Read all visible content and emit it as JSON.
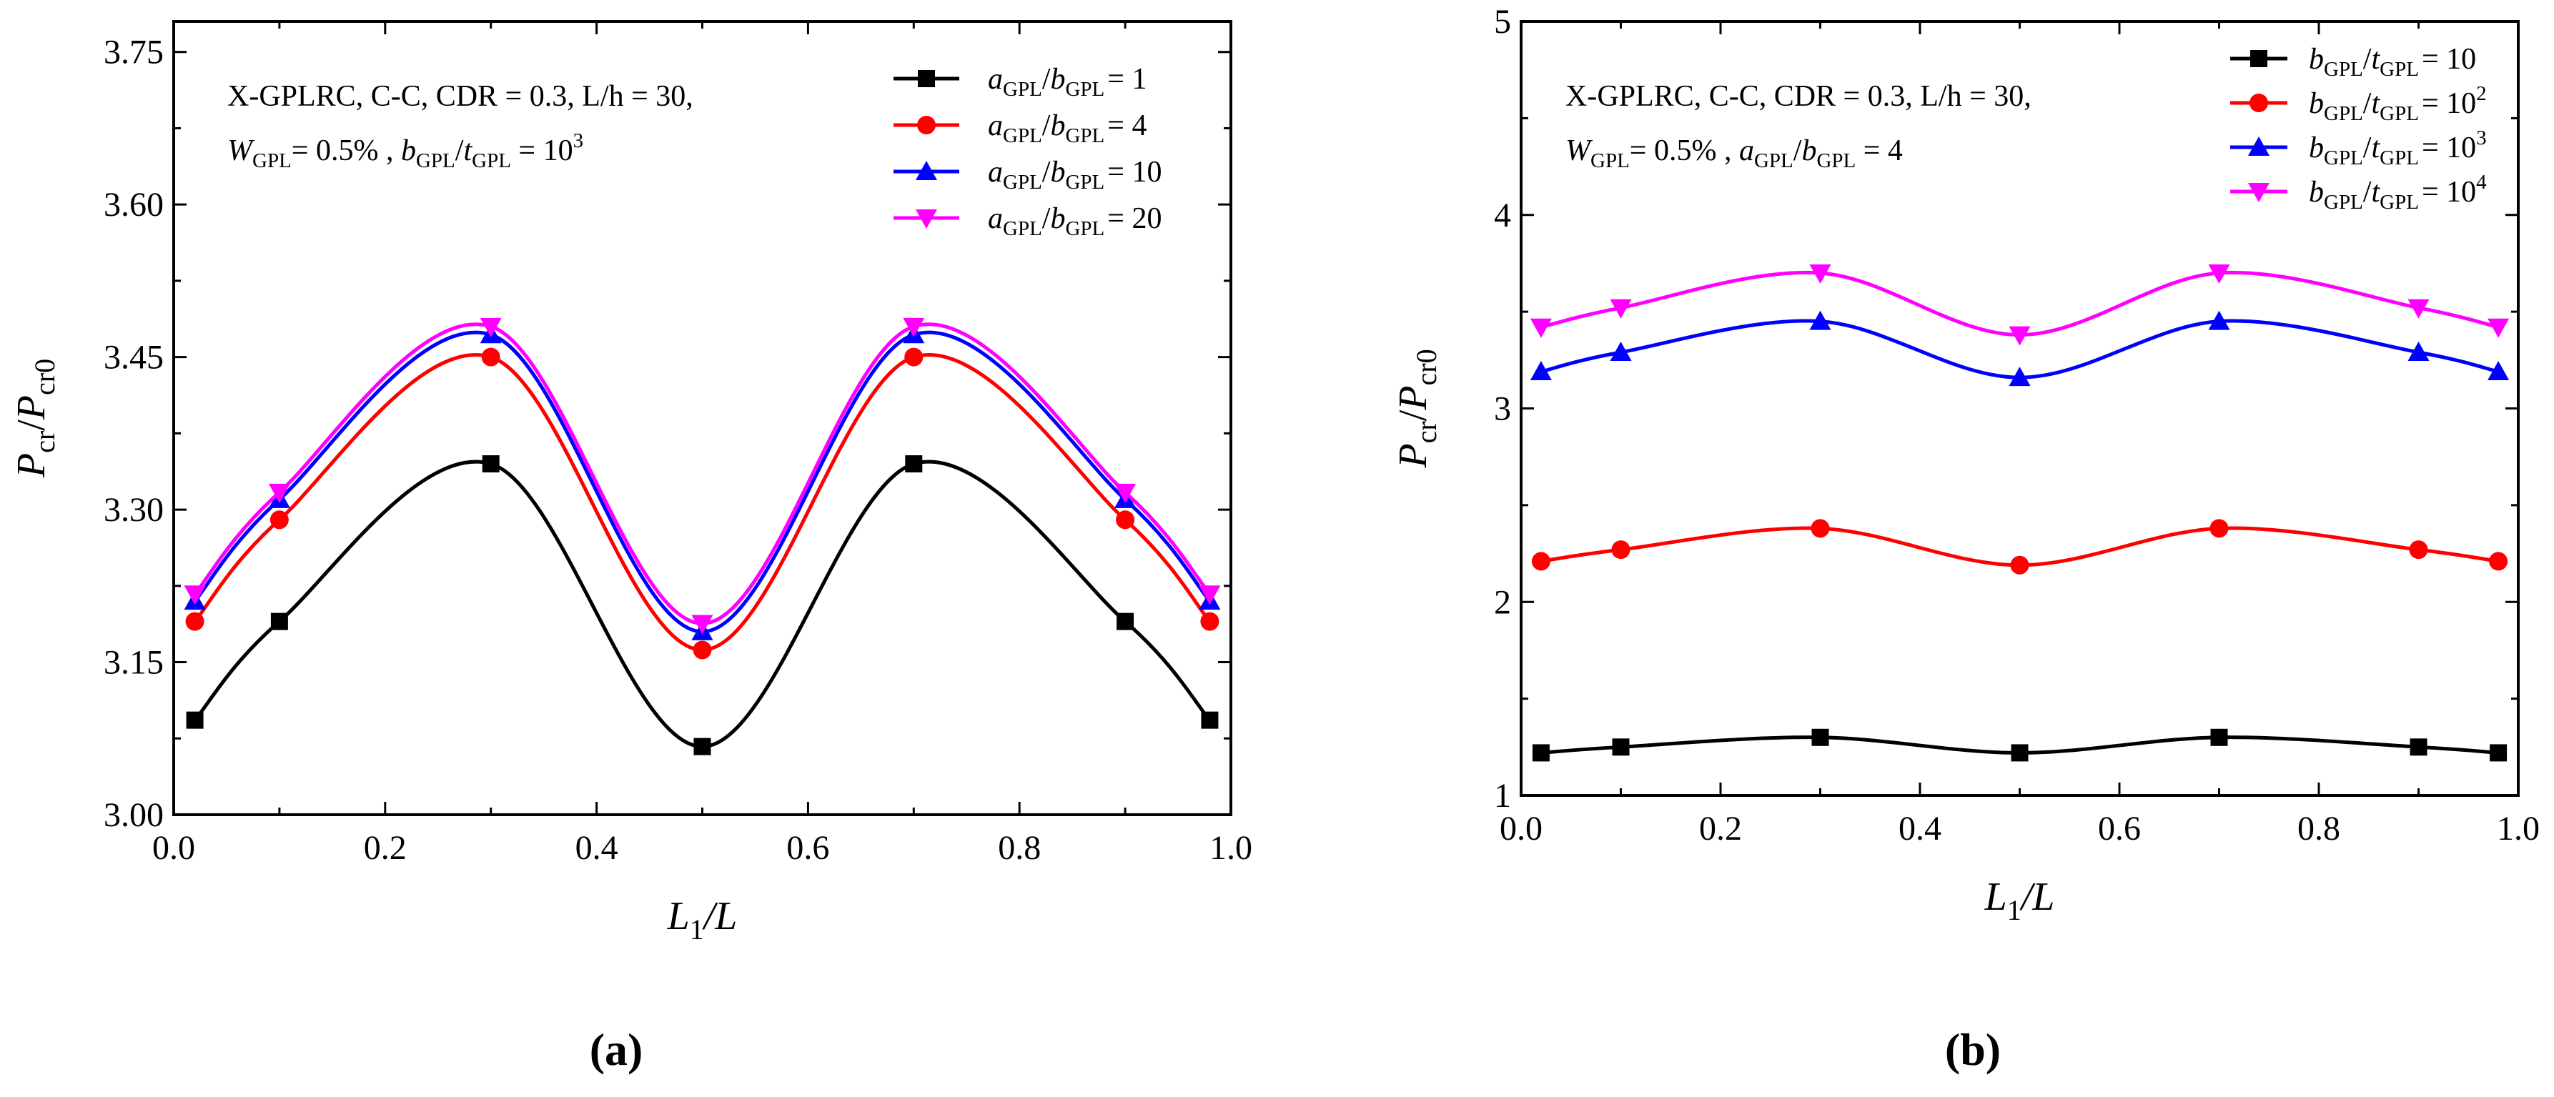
{
  "chart_data": [
    {
      "type": "line",
      "panel_label": "(a)",
      "title": "",
      "xlabel": {
        "main": "L",
        "sub": "1",
        "rest": "/L"
      },
      "ylabel": {
        "p1": "P",
        "s1": "cr",
        "slash": "/",
        "p2": "P",
        "s2": "cr0"
      },
      "xlim": [
        0.0,
        1.0
      ],
      "ylim": [
        3.0,
        3.78
      ],
      "xticks": [
        "0.0",
        "0.2",
        "0.4",
        "0.6",
        "0.8",
        "1.0"
      ],
      "yticks": [
        "3.00",
        "3.15",
        "3.30",
        "3.45",
        "3.60",
        "3.75"
      ],
      "annotation": {
        "line1": "X-GPLRC, C-C, CDR = 0.3, L/h = 30,",
        "line2": {
          "w": "W",
          "wsub": "GPL",
          "wrest": "= 0.5% ,  ",
          "b": "b",
          "bsub": "GPL",
          "slash": "/",
          "t": "t",
          "tsub": "GPL",
          "eq": " = 10",
          "exp": "3"
        }
      },
      "x": [
        0.02,
        0.1,
        0.3,
        0.5,
        0.7,
        0.9,
        0.98
      ],
      "series": [
        {
          "name": "a_GPL/b_GPL = 1",
          "legend": {
            "v1": "a",
            "s1": "GPL",
            "slash": "/",
            "v2": "b",
            "s2": "GPL",
            "rest": "= 1",
            "exp": ""
          },
          "color": "#000000",
          "marker": "square",
          "values": [
            3.093,
            3.19,
            3.345,
            3.067,
            3.345,
            3.19,
            3.093
          ]
        },
        {
          "name": "a_GPL/b_GPL = 4",
          "legend": {
            "v1": "a",
            "s1": "GPL",
            "slash": "/",
            "v2": "b",
            "s2": "GPL",
            "rest": "= 4",
            "exp": ""
          },
          "color": "#ff0000",
          "marker": "circle",
          "values": [
            3.19,
            3.29,
            3.45,
            3.162,
            3.45,
            3.29,
            3.19
          ]
        },
        {
          "name": "a_GPL/b_GPL = 10",
          "legend": {
            "v1": "a",
            "s1": "GPL",
            "slash": "/",
            "v2": "b",
            "s2": "GPL",
            "rest": "= 10",
            "exp": ""
          },
          "color": "#0000ff",
          "marker": "triangle-up",
          "values": [
            3.21,
            3.31,
            3.472,
            3.18,
            3.472,
            3.31,
            3.21
          ]
        },
        {
          "name": "a_GPL/b_GPL = 20",
          "legend": {
            "v1": "a",
            "s1": "GPL",
            "slash": "/",
            "v2": "b",
            "s2": "GPL",
            "rest": "= 20",
            "exp": ""
          },
          "color": "#ff00ff",
          "marker": "triangle-down",
          "values": [
            3.217,
            3.317,
            3.48,
            3.188,
            3.48,
            3.317,
            3.217
          ]
        }
      ]
    },
    {
      "type": "line",
      "panel_label": "(b)",
      "title": "",
      "xlabel": {
        "main": "L",
        "sub": "1",
        "rest": "/L"
      },
      "ylabel": {
        "p1": "P",
        "s1": "cr",
        "slash": "/",
        "p2": "P",
        "s2": "cr0"
      },
      "xlim": [
        0.0,
        1.0
      ],
      "ylim": [
        1.0,
        5.0
      ],
      "xticks": [
        "0.0",
        "0.2",
        "0.4",
        "0.6",
        "0.8",
        "1.0"
      ],
      "yticks": [
        "1",
        "2",
        "3",
        "4",
        "5"
      ],
      "annotation": {
        "line1": "X-GPLRC, C-C, CDR = 0.3, L/h = 30,",
        "line2": {
          "w": "W",
          "wsub": "GPL",
          "wrest": "= 0.5% ,  ",
          "b": "a",
          "bsub": "GPL",
          "slash": "/",
          "t": "b",
          "tsub": "GPL",
          "eq": " = 4",
          "exp": ""
        }
      },
      "x": [
        0.02,
        0.1,
        0.3,
        0.5,
        0.7,
        0.9,
        0.98
      ],
      "series": [
        {
          "name": "b_GPL/t_GPL = 10",
          "legend": {
            "v1": "b",
            "s1": "GPL",
            "slash": "/",
            "v2": "t",
            "s2": "GPL",
            "rest": "= 10",
            "exp": ""
          },
          "color": "#000000",
          "marker": "square",
          "values": [
            1.22,
            1.25,
            1.3,
            1.22,
            1.3,
            1.25,
            1.22
          ]
        },
        {
          "name": "b_GPL/t_GPL = 10^2",
          "legend": {
            "v1": "b",
            "s1": "GPL",
            "slash": "/",
            "v2": "t",
            "s2": "GPL",
            "rest": "= 10",
            "exp": "2"
          },
          "color": "#ff0000",
          "marker": "circle",
          "values": [
            2.21,
            2.27,
            2.38,
            2.19,
            2.38,
            2.27,
            2.21
          ]
        },
        {
          "name": "b_GPL/t_GPL = 10^3",
          "legend": {
            "v1": "b",
            "s1": "GPL",
            "slash": "/",
            "v2": "t",
            "s2": "GPL",
            "rest": "= 10",
            "exp": "3"
          },
          "color": "#0000ff",
          "marker": "triangle-up",
          "values": [
            3.19,
            3.29,
            3.45,
            3.16,
            3.45,
            3.29,
            3.19
          ]
        },
        {
          "name": "b_GPL/t_GPL = 10^4",
          "legend": {
            "v1": "b",
            "s1": "GPL",
            "slash": "/",
            "v2": "t",
            "s2": "GPL",
            "rest": "= 10",
            "exp": "4"
          },
          "color": "#ff00ff",
          "marker": "triangle-down",
          "values": [
            3.42,
            3.52,
            3.7,
            3.38,
            3.7,
            3.52,
            3.42
          ]
        }
      ]
    }
  ]
}
